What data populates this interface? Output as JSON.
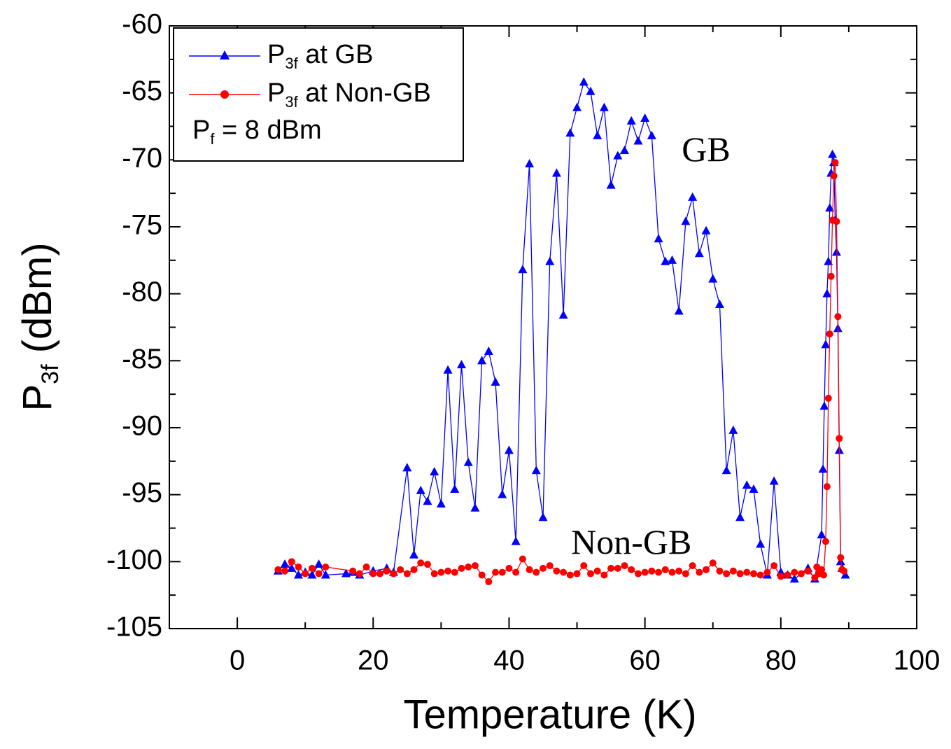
{
  "chart_data": {
    "type": "line",
    "xlabel": "Temperature (K)",
    "ylabel": "P",
    "ylabel_sub": "3f",
    "ylabel_rest": " (dBm)",
    "xlim": [
      -10,
      100
    ],
    "xticks": [
      0,
      20,
      40,
      60,
      80,
      100
    ],
    "xminorticks": [
      -10,
      10,
      30,
      50,
      70,
      90
    ],
    "ylim": [
      -105,
      -60
    ],
    "yticks": [
      -105,
      -100,
      -95,
      -90,
      -85,
      -80,
      -75,
      -70,
      -65,
      -60
    ],
    "yminorticks": [
      -102.5,
      -97.5,
      -92.5,
      -87.5,
      -82.5,
      -77.5,
      -72.5,
      -67.5,
      -62.5
    ],
    "legend": "upper left",
    "annotation": {
      "base": "P",
      "sub": "f",
      "rest": " = 8 dBm"
    },
    "labels": [
      {
        "text": "GB",
        "color": "#3333cc",
        "x": 69,
        "y": -69.5
      },
      {
        "text": "Non-GB",
        "color": "#ff0000",
        "x": 58,
        "y": -98.8
      }
    ],
    "series": [
      {
        "name_base": "P",
        "name_sub": "3f",
        "name": " at GB",
        "color": "#0000ff",
        "marker": "triangle",
        "x": [
          6,
          7,
          8,
          9,
          10,
          11,
          12,
          13,
          16,
          17,
          18,
          20,
          22,
          23,
          25,
          26,
          27,
          28,
          29,
          30,
          31,
          32,
          33,
          34,
          35,
          36,
          37,
          38,
          39,
          40,
          41,
          42,
          43,
          44,
          45,
          46,
          47,
          48,
          49,
          50,
          51,
          52,
          53,
          54,
          55,
          56,
          57,
          58,
          59,
          60,
          61,
          62,
          63,
          64,
          65,
          66,
          67,
          68,
          69,
          70,
          71,
          72,
          73,
          74,
          75,
          76,
          77,
          78,
          79,
          80,
          81,
          82,
          84,
          85,
          86,
          86.2,
          86.4,
          86.6,
          86.8,
          87,
          87.2,
          87.4,
          87.6,
          87.8,
          88,
          88.2,
          88.4,
          88.6,
          88.8,
          89,
          89.5
        ],
        "values": [
          -100.7,
          -100.2,
          -100.5,
          -101,
          -100.8,
          -101,
          -100.2,
          -101,
          -100.9,
          -100.8,
          -101,
          -100.7,
          -100.5,
          -100.8,
          -93,
          -99.5,
          -94.7,
          -95.5,
          -93.3,
          -95.7,
          -85.7,
          -94.6,
          -85.3,
          -92.6,
          -96,
          -85,
          -84.3,
          -86.6,
          -95,
          -91.7,
          -98.5,
          -78.2,
          -70.3,
          -93.2,
          -96.7,
          -77.6,
          -71,
          -81.6,
          -68,
          -66.1,
          -64.2,
          -64.9,
          -68.2,
          -66.1,
          -71.9,
          -69.7,
          -69.3,
          -67.1,
          -68.6,
          -66.9,
          -68.2,
          -75.9,
          -77.6,
          -77.5,
          -81.3,
          -74.6,
          -72.8,
          -77,
          -75.3,
          -78.9,
          -80.8,
          -93.2,
          -90.2,
          -96.7,
          -94.3,
          -94.6,
          -98.7,
          -101,
          -94,
          -100.8,
          -101,
          -101.3,
          -100.5,
          -101.3,
          -98,
          -93.1,
          -88.4,
          -83.8,
          -80,
          -77.6,
          -73.6,
          -71,
          -69.6,
          -70.2,
          -74.5,
          -76.9,
          -82.6,
          -91.7,
          -100,
          -100.5,
          -101
        ]
      },
      {
        "name_base": "P",
        "name_sub": "3f",
        "name": " at Non-GB",
        "color": "#ff0000",
        "marker": "circle",
        "x": [
          6,
          7,
          8,
          9,
          10,
          11,
          12,
          13,
          17,
          18,
          19,
          20,
          21,
          22,
          23,
          24,
          25,
          26,
          27,
          28,
          29,
          30,
          31,
          32,
          33,
          34,
          35,
          36,
          37,
          38,
          39,
          40,
          41,
          42,
          43,
          44,
          45,
          46,
          47,
          48,
          49,
          50,
          51,
          52,
          53,
          54,
          55,
          56,
          57,
          58,
          59,
          60,
          61,
          62,
          63,
          64,
          65,
          66,
          67,
          68,
          69,
          70,
          71,
          72,
          73,
          74,
          75,
          76,
          77,
          78,
          79,
          80,
          81,
          82,
          83,
          84,
          85,
          85.3,
          85.6,
          86,
          86.3,
          86.6,
          86.8,
          87,
          87.2,
          87.4,
          87.6,
          87.8,
          88,
          88.2,
          88.4,
          88.6,
          88.8,
          89,
          89.3
        ],
        "values": [
          -100.6,
          -100.7,
          -100,
          -100.4,
          -100.9,
          -100.5,
          -100.9,
          -100.4,
          -100.7,
          -100.9,
          -100.4,
          -100.9,
          -100.9,
          -100.7,
          -100.9,
          -100.6,
          -100.9,
          -100.6,
          -100.1,
          -100.2,
          -100.9,
          -100.8,
          -100.7,
          -100.8,
          -100.5,
          -100.4,
          -100.3,
          -101,
          -101.5,
          -100.8,
          -100.8,
          -100.5,
          -100.8,
          -99.8,
          -100.6,
          -100.8,
          -100.5,
          -100.3,
          -100.7,
          -100.8,
          -101,
          -100.9,
          -100.3,
          -100.9,
          -100.7,
          -101,
          -100.5,
          -100.5,
          -100.3,
          -100.6,
          -100.9,
          -100.8,
          -100.7,
          -100.8,
          -100.6,
          -100.8,
          -100.7,
          -100.9,
          -100.3,
          -100.8,
          -100.6,
          -100.1,
          -100.7,
          -100.9,
          -100.7,
          -100.9,
          -100.8,
          -100.9,
          -101,
          -100.8,
          -100.3,
          -101.1,
          -101,
          -100.8,
          -100.9,
          -100.7,
          -101.2,
          -100.4,
          -100.9,
          -100.6,
          -101,
          -98.5,
          -94.4,
          -87.8,
          -83,
          -78.7,
          -74.5,
          -71.2,
          -70.2,
          -74.6,
          -81.7,
          -90.8,
          -99.7,
          -100.6,
          -100.7
        ]
      }
    ]
  }
}
